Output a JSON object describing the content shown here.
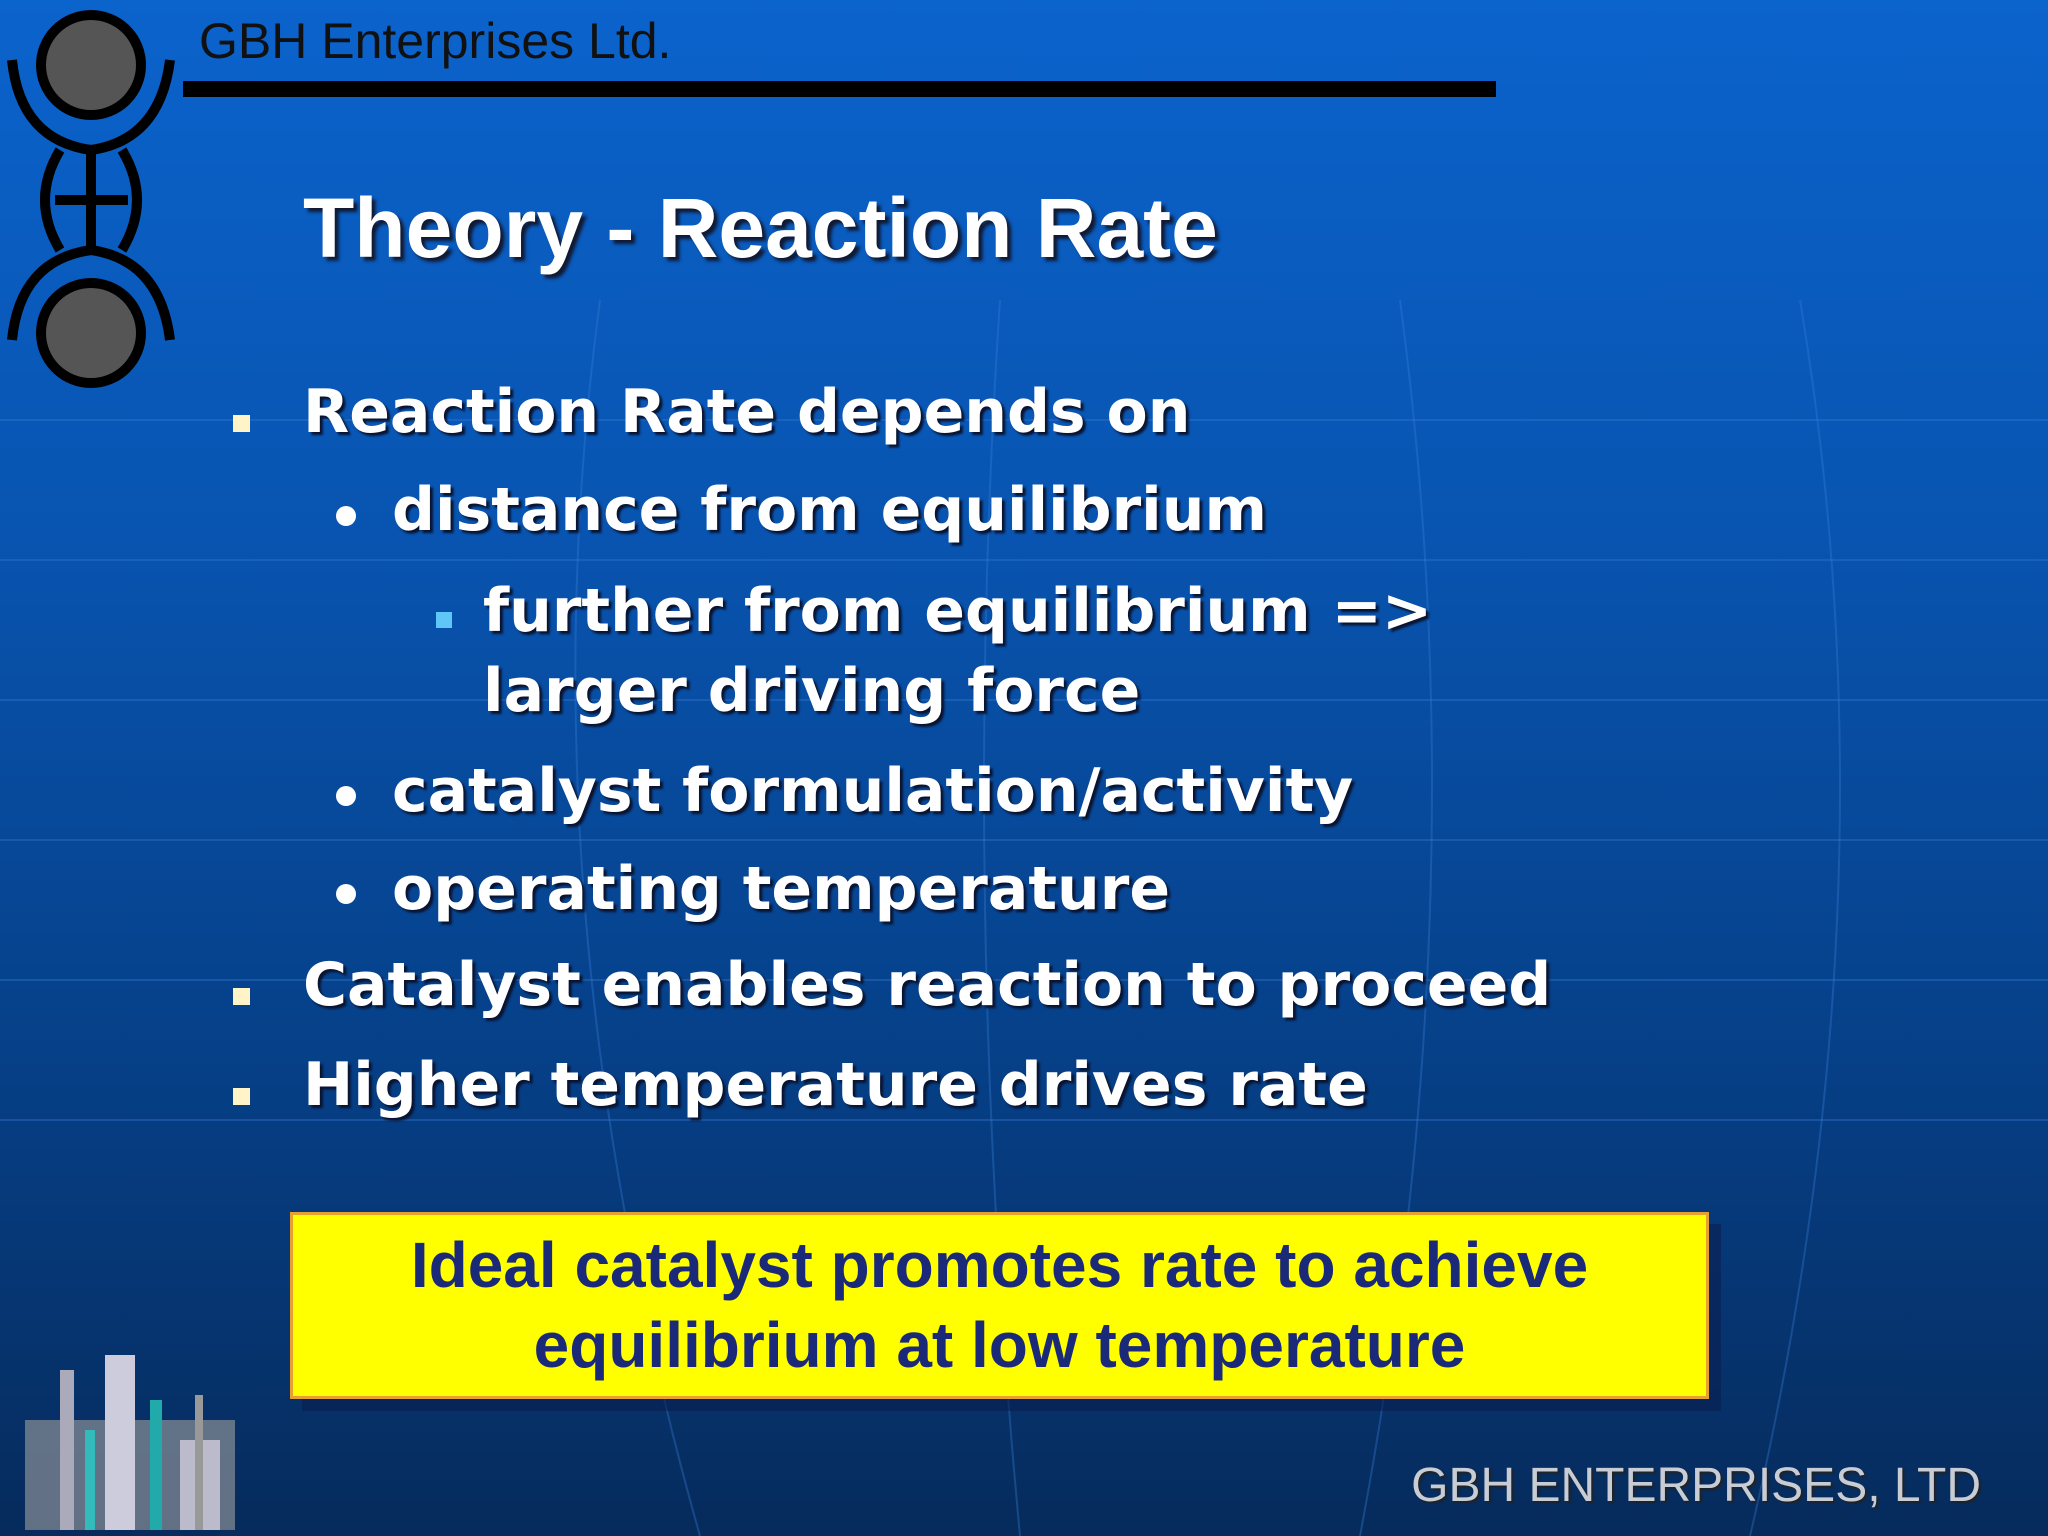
{
  "header": {
    "company": "GBH Enterprises Ltd."
  },
  "slide": {
    "title": "Theory - Reaction Rate",
    "bullets": [
      {
        "text": "Reaction Rate depends on",
        "sub": [
          {
            "text": "distance from equilibrium",
            "sub": [
              {
                "text": "further from equilibrium => larger driving force"
              }
            ]
          },
          {
            "text": "catalyst formulation/activity"
          },
          {
            "text": "operating temperature"
          }
        ]
      },
      {
        "text": "Catalyst enables reaction to proceed"
      },
      {
        "text": "Higher temperature drives rate"
      }
    ],
    "callout": {
      "lines": [
        "Ideal catalyst promotes rate to achieve",
        "equilibrium at low temperature"
      ]
    }
  },
  "footer": {
    "company": "GBH ENTERPRISES, LTD"
  }
}
